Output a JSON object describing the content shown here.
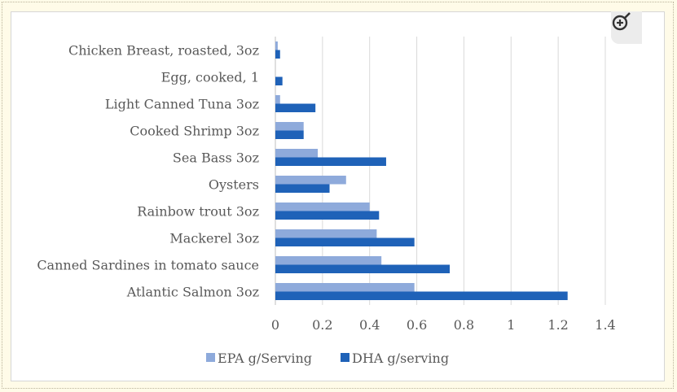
{
  "colors": {
    "epa": "#8eaadb",
    "dha": "#1f62b8",
    "grid": "#d9d9d9",
    "text": "#595959"
  },
  "icons": {
    "zoom": "zoom-in-icon"
  },
  "chart_data": {
    "type": "bar",
    "orientation": "horizontal",
    "title": "",
    "xlabel": "",
    "ylabel": "",
    "categories": [
      "Atlantic Salmon 3oz",
      "Canned Sardines in tomato sauce",
      "Mackerel 3oz",
      "Rainbow trout 3oz",
      "Oysters",
      "Sea Bass 3oz",
      "Cooked Shrimp 3oz",
      "Light Canned Tuna 3oz",
      "Egg, cooked, 1",
      "Chicken Breast, roasted, 3oz"
    ],
    "series": [
      {
        "name": "EPA g/Serving",
        "values": [
          0.59,
          0.45,
          0.43,
          0.4,
          0.3,
          0.18,
          0.12,
          0.02,
          0.0,
          0.01
        ]
      },
      {
        "name": "DHA g/serving",
        "values": [
          1.24,
          0.74,
          0.59,
          0.44,
          0.23,
          0.47,
          0.12,
          0.17,
          0.03,
          0.02
        ]
      }
    ],
    "xlim": [
      0,
      1.4
    ],
    "xticks": [
      "0",
      "0.2",
      "0.4",
      "0.6",
      "0.8",
      "1",
      "1.2",
      "1.4"
    ],
    "grid": true,
    "legend": "bottom"
  }
}
